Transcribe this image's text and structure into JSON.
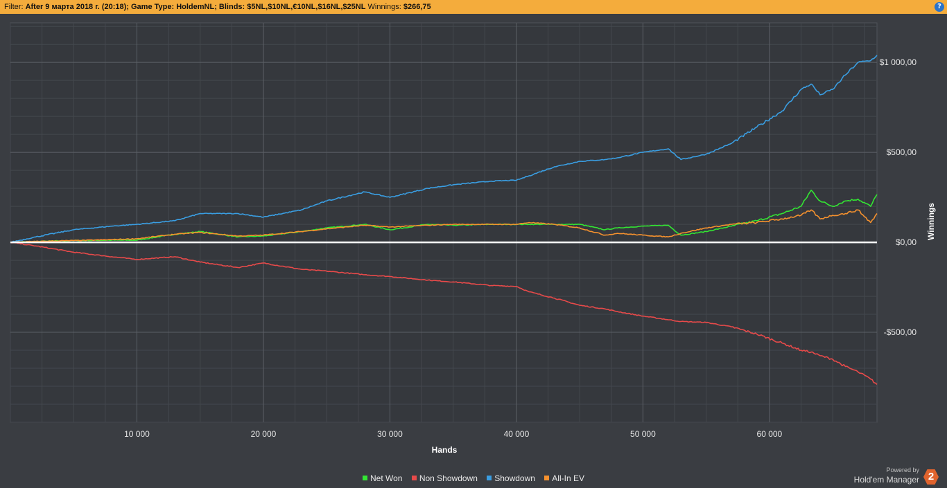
{
  "filter_bar": {
    "prefix": "Filter: ",
    "date_filter": "After 9 марта 2018 г. (20:18); Game Type: HoldemNL; Blinds: $5NL,$10NL,€10NL,$16NL,$25NL",
    "winnings_label": " Winnings: ",
    "winnings_value": "$266,75",
    "help_glyph": "?"
  },
  "chart_data": {
    "type": "line",
    "title": "",
    "xlabel": "Hands",
    "ylabel": "Winnings",
    "xlim": [
      0,
      68500
    ],
    "ylim": [
      -1000,
      1220
    ],
    "x_ticks": [
      10000,
      20000,
      30000,
      40000,
      50000,
      60000
    ],
    "x_tick_labels": [
      "10 000",
      "20 000",
      "30 000",
      "40 000",
      "50 000",
      "60 000"
    ],
    "y_ticks": [
      1000,
      500,
      0,
      -500
    ],
    "y_tick_labels": [
      "$1 000,00",
      "$500,00",
      "$0,00",
      "-$500,00"
    ],
    "grid": true,
    "legend_position": "bottom",
    "x": [
      0,
      2000,
      5000,
      8000,
      10000,
      13000,
      15000,
      18000,
      20000,
      23000,
      25000,
      28000,
      30000,
      33000,
      35000,
      38000,
      40000,
      41000,
      43000,
      45000,
      47000,
      48000,
      50000,
      52000,
      53000,
      55000,
      57000,
      59000,
      61000,
      62500,
      63300,
      64000,
      65000,
      66000,
      67000,
      68000,
      68500
    ],
    "series": [
      {
        "name": "Net Won",
        "color": "#33e633",
        "values": [
          0,
          5,
          10,
          12,
          12,
          45,
          60,
          30,
          35,
          60,
          80,
          100,
          70,
          100,
          95,
          100,
          100,
          100,
          100,
          100,
          70,
          80,
          90,
          95,
          40,
          60,
          90,
          120,
          160,
          200,
          290,
          230,
          200,
          230,
          240,
          200,
          266
        ]
      },
      {
        "name": "Non Showdown",
        "color": "#e84a4a",
        "values": [
          0,
          -20,
          -55,
          -80,
          -95,
          -80,
          -110,
          -140,
          -115,
          -150,
          -160,
          -180,
          -190,
          -210,
          -220,
          -240,
          -245,
          -275,
          -310,
          -350,
          -370,
          -385,
          -410,
          -430,
          -440,
          -445,
          -470,
          -510,
          -560,
          -600,
          -610,
          -630,
          -650,
          -690,
          -720,
          -760,
          -790
        ]
      },
      {
        "name": "Showdown",
        "color": "#3a9ee2",
        "values": [
          0,
          30,
          70,
          90,
          100,
          120,
          160,
          160,
          140,
          180,
          230,
          280,
          250,
          300,
          320,
          340,
          345,
          370,
          420,
          450,
          460,
          470,
          500,
          520,
          460,
          490,
          550,
          640,
          730,
          850,
          880,
          820,
          850,
          930,
          1000,
          1010,
          1040
        ]
      },
      {
        "name": "All-In EV",
        "color": "#f5912e",
        "values": [
          0,
          5,
          10,
          15,
          20,
          45,
          55,
          35,
          40,
          60,
          75,
          95,
          85,
          95,
          100,
          100,
          100,
          110,
          100,
          80,
          40,
          50,
          40,
          30,
          50,
          80,
          100,
          110,
          130,
          150,
          180,
          130,
          150,
          160,
          180,
          110,
          160
        ]
      }
    ]
  },
  "legend": {
    "items": [
      {
        "label": "Net Won",
        "color": "#33e633"
      },
      {
        "label": "Non Showdown",
        "color": "#e84a4a"
      },
      {
        "label": "Showdown",
        "color": "#3a9ee2"
      },
      {
        "label": "All-In EV",
        "color": "#f5912e"
      }
    ]
  },
  "branding": {
    "powered_by": "Powered by",
    "product": "Hold'em Manager",
    "logo_glyph": "2"
  }
}
